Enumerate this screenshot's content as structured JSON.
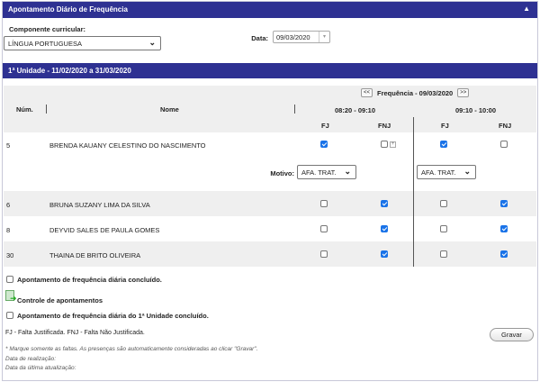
{
  "header": {
    "title": "Apontamento Diário de Frequência",
    "collapse_icon": "triangle-up-icon"
  },
  "filters": {
    "component_label": "Componente curricular:",
    "component_value": "LÍNGUA PORTUGUESA",
    "date_label": "Data:",
    "date_value": "09/03/2020"
  },
  "unit_bar": {
    "title": "1ª Unidade - 11/02/2020 a 31/03/2020"
  },
  "table": {
    "prev": "<<",
    "next": ">>",
    "freq_title": "Frequência - 09/03/2020",
    "col_num": "Núm.",
    "col_name": "Nome",
    "slots": [
      "08:20 - 09:10",
      "09:10 - 10:00"
    ],
    "fj": "FJ",
    "fnj": "FNJ",
    "motivo_label": "Motivo:",
    "motivo_values": [
      "AFA. TRAT.",
      "AFA. TRAT."
    ],
    "rows": [
      {
        "num": "5",
        "name": "BRENDA KAUANY CELESTINO DO NASCIMENTO",
        "checks": [
          true,
          false,
          true,
          false
        ]
      },
      {
        "num": "6",
        "name": "BRUNA SUZANY LIMA DA SILVA",
        "checks": [
          false,
          true,
          false,
          true
        ]
      },
      {
        "num": "8",
        "name": "DEYVID SALES DE PAULA GOMES",
        "checks": [
          false,
          true,
          false,
          true
        ]
      },
      {
        "num": "30",
        "name": "THAINA DE BRITO OLIVEIRA",
        "checks": [
          false,
          true,
          false,
          true
        ]
      }
    ]
  },
  "footer": {
    "daily_done": "Apontamento de frequência diária concluído.",
    "control": "Controle de apontamentos",
    "unit_done": "Apontamento de frequência diária do 1ª Unidade concluído.",
    "legend": "FJ - Falta Justificada. FNJ - Falta Não Justificada.",
    "save": "Gravar",
    "note": "* Marque somente as faltas. As presenças são automaticamente consideradas ao clicar \"Gravar\".",
    "realizacao": "Data de realização:",
    "atualizacao": "Data da última atualização:"
  }
}
